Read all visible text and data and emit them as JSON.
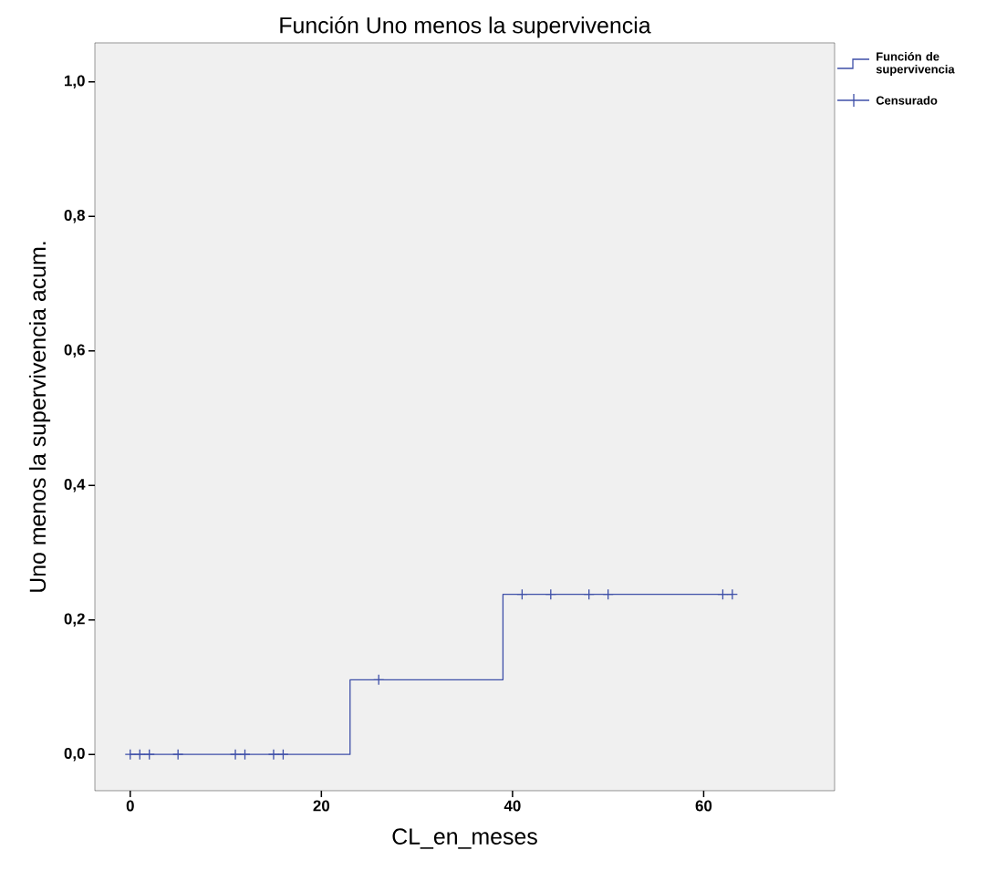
{
  "chart_data": {
    "type": "step",
    "title": "Función Uno menos la supervivencia",
    "xlabel": "CL_en_meses",
    "ylabel": "Uno menos la supervivencia acum.",
    "xlim": [
      -3.7,
      73.7
    ],
    "ylim": [
      -0.054,
      1.058
    ],
    "xticks": [
      0,
      20,
      40,
      60
    ],
    "yticks": [
      {
        "value": 0,
        "label": "0,0"
      },
      {
        "value": 0.2,
        "label": "0,2"
      },
      {
        "value": 0.4,
        "label": "0,4"
      },
      {
        "value": 0.6,
        "label": "0,6"
      },
      {
        "value": 0.8,
        "label": "0,8"
      },
      {
        "value": 1,
        "label": "1,0"
      }
    ],
    "grid": false,
    "legend": "top right",
    "series": [
      {
        "name": "Función de supervivencia",
        "color": "#3e4fa8",
        "x": [
          0,
          23,
          39,
          63
        ],
        "values": [
          0,
          0.111,
          0.238,
          0.238
        ]
      },
      {
        "name": "Censurado",
        "type": "scatter",
        "marker": "cross",
        "color": "#3e4fa8",
        "x": [
          0,
          1,
          2,
          5,
          11,
          12,
          15,
          16,
          26,
          41,
          44,
          48,
          50,
          62,
          63
        ],
        "values": [
          0,
          0,
          0,
          0,
          0,
          0,
          0,
          0,
          0.111,
          0.238,
          0.238,
          0.238,
          0.238,
          0.238,
          0.238
        ]
      }
    ]
  }
}
